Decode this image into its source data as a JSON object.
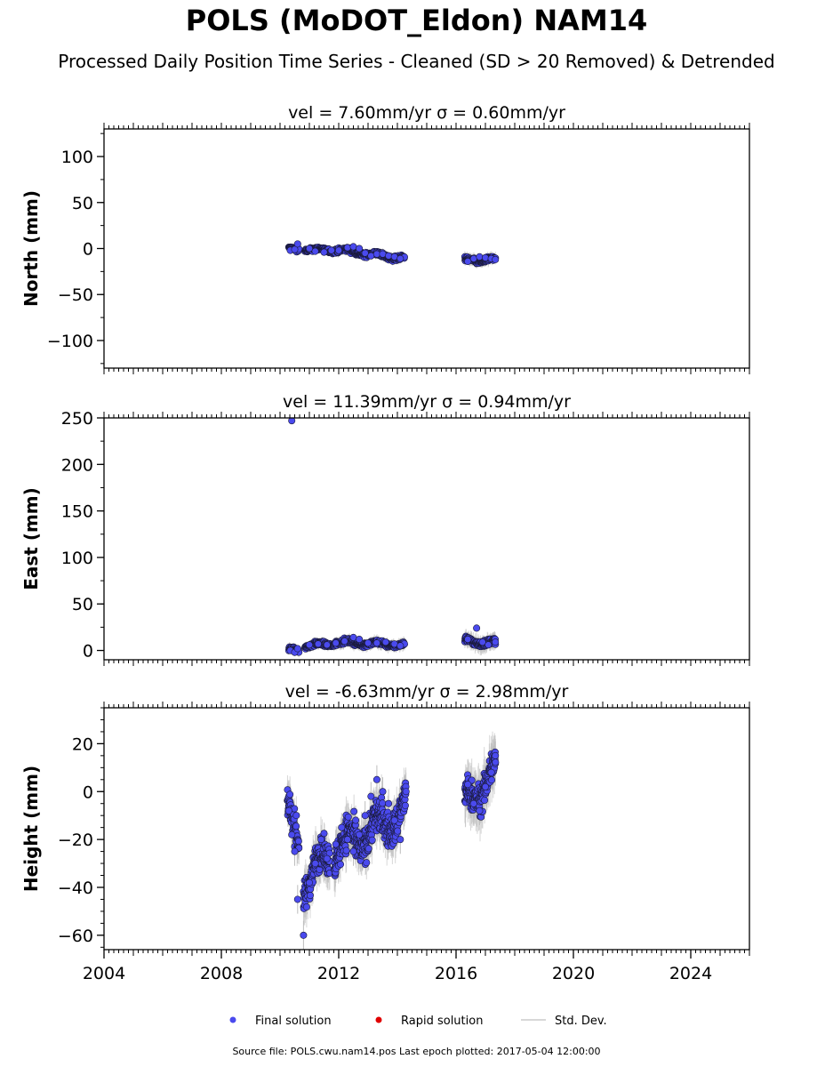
{
  "header": {
    "title": "POLS (MoDOT_Eldon) NAM14",
    "subtitle": "Processed Daily Position Time Series - Cleaned (SD > 20 Removed) & Detrended"
  },
  "footer": {
    "source": "Source file: POLS.cwu.nam14.pos  Last epoch plotted: 2017-05-04 12:00:00"
  },
  "legend": {
    "placement": "bottom-center",
    "items": [
      {
        "label": "Final solution",
        "color": "#4a4aee"
      },
      {
        "label": "Rapid solution",
        "color": "#e00000"
      },
      {
        "label": "Std. Dev.",
        "color": "#cccccc"
      }
    ]
  },
  "colors": {
    "final": "#4a4aee",
    "rapid": "#e00000",
    "stddev": "#bdbdbd",
    "marker_edge": "#1a1a3a"
  },
  "chart_data": [
    {
      "type": "scatter",
      "panel": "north",
      "title": "vel = 7.60mm/yr   σ = 0.60mm/yr",
      "ylabel": "North (mm)",
      "xlabel": "",
      "xlim": [
        2004,
        2026
      ],
      "ylim": [
        -130,
        130
      ],
      "yticks": [
        100,
        50,
        0,
        -50,
        -100
      ],
      "grid": false,
      "series": [
        {
          "name": "Final solution",
          "x": [
            2010.35,
            2010.5,
            2010.6,
            2011.0,
            2011.2,
            2011.5,
            2011.75,
            2012.0,
            2012.3,
            2012.5,
            2012.7,
            2012.9,
            2013.1,
            2013.3,
            2013.5,
            2013.7,
            2013.9,
            2014.1,
            2016.4,
            2016.6,
            2016.8,
            2017.0,
            2017.2,
            2017.34
          ],
          "y": [
            -2,
            -1,
            5,
            0,
            -3,
            -4,
            -2,
            -2,
            1,
            2,
            0,
            -5,
            -8,
            -6,
            -6,
            -8,
            -9,
            -11,
            -14,
            -11,
            -9,
            -10,
            -11,
            -12
          ]
        }
      ],
      "segments": [
        {
          "name": "north",
          "ranges": [
            [
              2010.3,
              2010.65
            ],
            [
              2010.85,
              2011.85
            ],
            [
              2011.85,
              2014.25
            ],
            [
              2016.3,
              2017.35
            ]
          ],
          "trend": [
            [
              -1,
              -1
            ],
            [
              -1,
              -2
            ],
            [
              -1,
              -11
            ],
            [
              -13,
              -12
            ]
          ],
          "amp": [
            2.5,
            2.5,
            3,
            3
          ],
          "err": [
            3,
            3,
            4,
            5
          ]
        }
      ]
    },
    {
      "type": "scatter",
      "panel": "east",
      "title": "vel = 11.39mm/yr   σ = 0.94mm/yr",
      "ylabel": "East (mm)",
      "xlabel": "",
      "xlim": [
        2004,
        2026
      ],
      "ylim": [
        -10,
        250
      ],
      "yticks": [
        250,
        200,
        150,
        100,
        50,
        0
      ],
      "grid": false,
      "series": [
        {
          "name": "Final solution",
          "x": [
            2010.35,
            2010.4,
            2010.5,
            2010.6,
            2011.0,
            2011.3,
            2011.6,
            2011.9,
            2012.2,
            2012.5,
            2012.7,
            2013.0,
            2013.3,
            2013.6,
            2013.9,
            2014.1,
            2016.4,
            2016.7,
            2016.9,
            2017.1,
            2017.34
          ],
          "y": [
            0,
            247,
            -2,
            2,
            6,
            7,
            6,
            8,
            10,
            14,
            12,
            8,
            8,
            9,
            7,
            5,
            12,
            24,
            9,
            6,
            9
          ]
        }
      ],
      "segments": [
        {
          "name": "east",
          "ranges": [
            [
              2010.3,
              2010.65
            ],
            [
              2010.85,
              2011.85
            ],
            [
              2011.85,
              2014.25
            ],
            [
              2016.3,
              2017.35
            ]
          ],
          "trend": [
            [
              0,
              1
            ],
            [
              5,
              7
            ],
            [
              9,
              6
            ],
            [
              10,
              8
            ]
          ],
          "amp": [
            3,
            3,
            3,
            4
          ],
          "err": [
            4,
            4,
            5,
            7
          ]
        }
      ]
    },
    {
      "type": "scatter",
      "panel": "height",
      "title": "vel = -6.63mm/yr   σ = 2.98mm/yr",
      "ylabel": "Height (mm)",
      "xlabel": "",
      "xlim": [
        2004,
        2026
      ],
      "xticks": [
        2004,
        2008,
        2012,
        2016,
        2020,
        2024
      ],
      "ylim": [
        -66,
        35
      ],
      "yticks": [
        20,
        0,
        -20,
        -40,
        -60
      ],
      "grid": false,
      "series": [
        {
          "name": "Final solution",
          "x": [
            2010.3,
            2010.4,
            2010.5,
            2010.6,
            2010.8,
            2011.0,
            2011.2,
            2011.4,
            2011.6,
            2011.9,
            2012.1,
            2012.3,
            2012.5,
            2012.7,
            2012.9,
            2013.1,
            2013.3,
            2013.5,
            2013.7,
            2013.9,
            2014.1,
            2016.4,
            2016.6,
            2016.8,
            2017.0,
            2017.2,
            2017.34
          ],
          "y": [
            -8,
            -18,
            -25,
            -45,
            -60,
            -38,
            -30,
            -20,
            -28,
            -22,
            -15,
            -20,
            -25,
            -18,
            -10,
            -2,
            5,
            0,
            -5,
            -12,
            -20,
            3,
            -5,
            -8,
            2,
            8,
            15
          ]
        }
      ],
      "segments": [
        {
          "name": "height",
          "ranges": [
            [
              2010.25,
              2010.65
            ],
            [
              2010.8,
              2011.7
            ],
            [
              2011.85,
              2014.3
            ],
            [
              2016.3,
              2017.35
            ]
          ],
          "trend": [
            [
              -10,
              -20
            ],
            [
              -40,
              -25
            ],
            [
              -25,
              -8
            ],
            [
              -5,
              8
            ]
          ],
          "amp": [
            8,
            8,
            9,
            8
          ],
          "err": [
            6,
            7,
            7,
            8
          ]
        }
      ]
    }
  ]
}
